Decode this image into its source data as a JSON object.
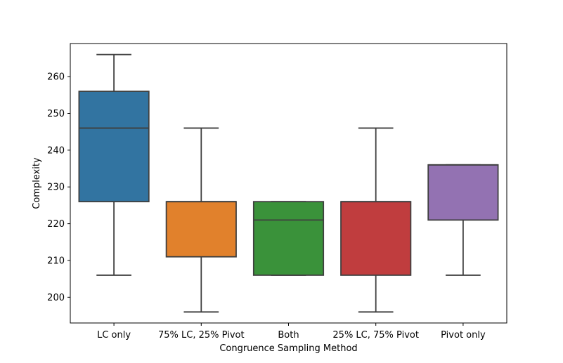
{
  "chart_data": {
    "type": "box",
    "xlabel": "Congruence Sampling Method",
    "ylabel": "Complexity",
    "ylim": [
      193,
      269
    ],
    "yticks": [
      200,
      210,
      220,
      230,
      240,
      250,
      260
    ],
    "grid": false,
    "categories": [
      "LC only",
      "75% LC, 25% Pivot",
      "Both",
      "25% LC, 75% Pivot",
      "Pivot only"
    ],
    "boxes": [
      {
        "category": "LC only",
        "whisker_low": 206,
        "q1": 226,
        "median": 246,
        "q3": 256,
        "whisker_high": 266,
        "color": "#3274a1"
      },
      {
        "category": "75% LC, 25% Pivot",
        "whisker_low": 196,
        "q1": 211,
        "median": 226,
        "q3": 226,
        "whisker_high": 246,
        "color": "#e1812c"
      },
      {
        "category": "Both",
        "whisker_low": 206,
        "q1": 206,
        "median": 221,
        "q3": 226,
        "whisker_high": 226,
        "color": "#3a923a"
      },
      {
        "category": "25% LC, 75% Pivot",
        "whisker_low": 196,
        "q1": 206,
        "median": 226,
        "q3": 226,
        "whisker_high": 246,
        "color": "#c03d3e"
      },
      {
        "category": "Pivot only",
        "whisker_low": 206,
        "q1": 221,
        "median": 236,
        "q3": 236,
        "whisker_high": 236,
        "color": "#9372b2"
      }
    ]
  }
}
